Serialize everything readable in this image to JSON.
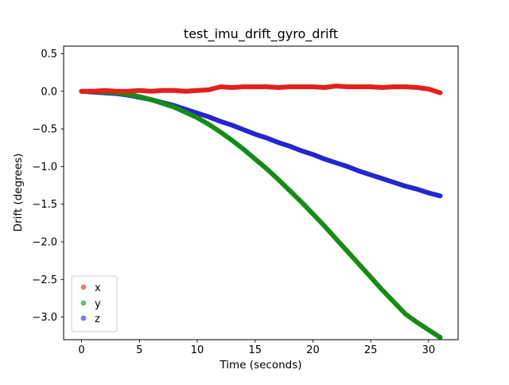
{
  "chart_data": {
    "type": "scatter",
    "title": "test_imu_drift_gyro_drift",
    "xlabel": "Time (seconds)",
    "ylabel": "Drift (degrees)",
    "xlim": [
      -1.55,
      32.55
    ],
    "ylim": [
      -3.3,
      0.6
    ],
    "xtick_values": [
      0,
      5,
      10,
      15,
      20,
      25,
      30
    ],
    "xtick_labels": [
      "0",
      "5",
      "10",
      "15",
      "20",
      "25",
      "30"
    ],
    "ytick_values": [
      0.5,
      0.0,
      -0.5,
      -1.0,
      -1.5,
      -2.0,
      -2.5,
      -3.0
    ],
    "ytick_labels": [
      "0.5",
      "0.0",
      "−0.5",
      "−1.0",
      "−1.5",
      "−2.0",
      "−2.5",
      "−3.0"
    ],
    "grid": false,
    "legend_position": "lower left",
    "x": [
      0,
      1,
      2,
      3,
      4,
      5,
      6,
      7,
      8,
      9,
      10,
      11,
      12,
      13,
      14,
      15,
      16,
      17,
      18,
      19,
      20,
      21,
      22,
      23,
      24,
      25,
      26,
      27,
      28,
      29,
      30,
      31
    ],
    "series": [
      {
        "name": "x",
        "color": "#e3201b",
        "values": [
          0.0,
          0.0,
          0.01,
          0.0,
          0.0,
          0.01,
          0.0,
          0.01,
          0.01,
          0.0,
          0.01,
          0.02,
          0.06,
          0.05,
          0.06,
          0.06,
          0.06,
          0.05,
          0.06,
          0.06,
          0.06,
          0.05,
          0.07,
          0.06,
          0.06,
          0.06,
          0.05,
          0.06,
          0.06,
          0.05,
          0.03,
          -0.02
        ]
      },
      {
        "name": "y",
        "color": "#168c16",
        "values": [
          0.0,
          0.0,
          -0.01,
          -0.02,
          -0.04,
          -0.07,
          -0.11,
          -0.16,
          -0.21,
          -0.28,
          -0.35,
          -0.44,
          -0.54,
          -0.65,
          -0.77,
          -0.9,
          -1.03,
          -1.17,
          -1.32,
          -1.47,
          -1.63,
          -1.79,
          -1.96,
          -2.13,
          -2.3,
          -2.47,
          -2.64,
          -2.8,
          -2.96,
          -3.07,
          -3.17,
          -3.27
        ]
      },
      {
        "name": "z",
        "color": "#2525d0",
        "values": [
          0.0,
          -0.01,
          -0.02,
          -0.03,
          -0.05,
          -0.08,
          -0.11,
          -0.15,
          -0.19,
          -0.24,
          -0.29,
          -0.34,
          -0.4,
          -0.45,
          -0.51,
          -0.57,
          -0.62,
          -0.68,
          -0.73,
          -0.79,
          -0.84,
          -0.9,
          -0.95,
          -1.0,
          -1.06,
          -1.11,
          -1.16,
          -1.21,
          -1.26,
          -1.3,
          -1.35,
          -1.39
        ]
      }
    ]
  }
}
